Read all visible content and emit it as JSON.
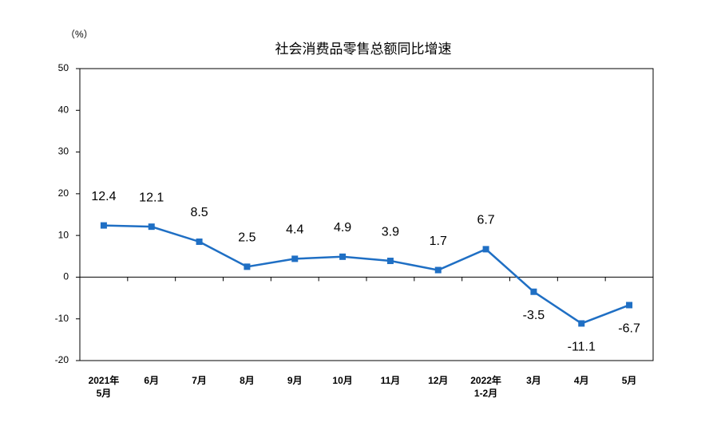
{
  "chart_data": {
    "type": "line",
    "title": "社会消费品零售总额同比增速",
    "y_label": "（%）",
    "categories": [
      "2021年\n5月",
      "6月",
      "7月",
      "8月",
      "9月",
      "10月",
      "11月",
      "12月",
      "2022年\n1-2月",
      "3月",
      "4月",
      "5月"
    ],
    "series": [
      {
        "name": "社会消费品零售总额同比增速",
        "color": "#1f6fc4",
        "values": [
          12.4,
          12.1,
          8.5,
          2.5,
          4.4,
          4.9,
          3.9,
          1.7,
          6.7,
          -3.5,
          -11.1,
          -6.7
        ]
      }
    ],
    "ylim": [
      -20,
      50
    ],
    "yticks": [
      -20,
      -10,
      0,
      10,
      20,
      30,
      40,
      50
    ],
    "grid": false
  }
}
